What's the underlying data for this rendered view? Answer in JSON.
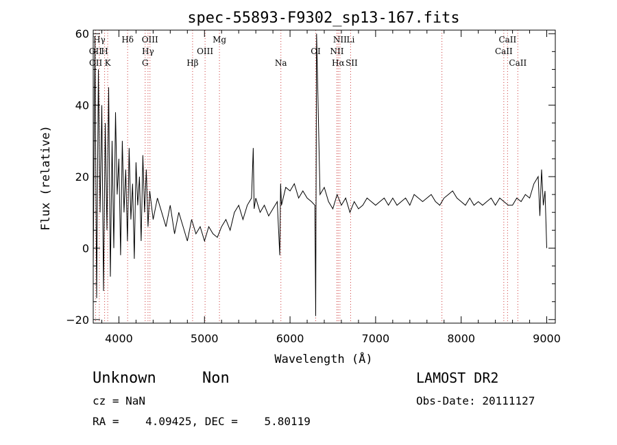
{
  "chart_data": {
    "type": "line",
    "title": "spec-55893-F9302_sp13-167.fits",
    "xlabel": "Wavelength (Å)",
    "ylabel": "Flux (relative)",
    "xlim": [
      3700,
      9100
    ],
    "ylim": [
      -21,
      61
    ],
    "xticks": [
      4000,
      5000,
      6000,
      7000,
      8000,
      9000
    ],
    "xtick_labels": [
      "4000",
      "5000",
      "6000",
      "7000",
      "8000",
      "9000"
    ],
    "yticks": [
      -20,
      0,
      20,
      40,
      60
    ],
    "ytick_labels": [
      "−20",
      "0",
      "20",
      "40",
      "60"
    ],
    "grid": false,
    "line_color": "#000000",
    "marker_color": "#cc3333",
    "series": [
      {
        "x": [
          3700,
          3720,
          3740,
          3760,
          3780,
          3800,
          3820,
          3840,
          3860,
          3880,
          3900,
          3920,
          3940,
          3960,
          3980,
          4000,
          4020,
          4040,
          4060,
          4080,
          4100,
          4120,
          4140,
          4160,
          4180,
          4200,
          4220,
          4240,
          4260,
          4280,
          4300,
          4320,
          4340,
          4360,
          4380,
          4400,
          4450,
          4500,
          4550,
          4600,
          4650,
          4700,
          4750,
          4800,
          4850,
          4900,
          4950,
          5000,
          5050,
          5100,
          5150,
          5200,
          5250,
          5300,
          5350,
          5400,
          5450,
          5500,
          5550,
          5570,
          5580,
          5600,
          5650,
          5700,
          5750,
          5800,
          5850,
          5880,
          5890,
          5900,
          5950,
          6000,
          6050,
          6100,
          6150,
          6200,
          6250,
          6290,
          6300,
          6310,
          6350,
          6400,
          6450,
          6500,
          6550,
          6600,
          6650,
          6700,
          6750,
          6800,
          6850,
          6900,
          6950,
          7000,
          7050,
          7100,
          7150,
          7200,
          7250,
          7300,
          7350,
          7400,
          7450,
          7500,
          7550,
          7600,
          7650,
          7700,
          7750,
          7800,
          7850,
          7900,
          7950,
          8000,
          8050,
          8100,
          8150,
          8200,
          8250,
          8300,
          8350,
          8400,
          8450,
          8500,
          8550,
          8600,
          8650,
          8700,
          8750,
          8800,
          8850,
          8900,
          8920,
          8940,
          8960,
          8980,
          9000
        ],
        "y": [
          -5,
          58,
          -14,
          50,
          10,
          40,
          -12,
          35,
          5,
          45,
          -8,
          30,
          0,
          38,
          15,
          25,
          -2,
          30,
          10,
          22,
          2,
          28,
          8,
          18,
          -3,
          24,
          12,
          20,
          2,
          26,
          10,
          22,
          6,
          16,
          12,
          8,
          14,
          10,
          6,
          12,
          4,
          10,
          6,
          2,
          8,
          4,
          6,
          2,
          6,
          4,
          3,
          6,
          8,
          5,
          10,
          12,
          8,
          12,
          14,
          28,
          11,
          14,
          10,
          12,
          9,
          11,
          13,
          -2,
          18,
          12,
          17,
          16,
          18,
          14,
          16,
          14,
          13,
          12,
          -19,
          60,
          15,
          17,
          13,
          11,
          15,
          12,
          14,
          10,
          13,
          11,
          12,
          14,
          13,
          12,
          13,
          14,
          12,
          14,
          12,
          13,
          14,
          12,
          15,
          14,
          13,
          14,
          15,
          13,
          12,
          14,
          15,
          16,
          14,
          13,
          12,
          14,
          12,
          13,
          12,
          13,
          14,
          12,
          14,
          13,
          12,
          12,
          14,
          13,
          15,
          14,
          18,
          20,
          9,
          22,
          12,
          16,
          0
        ]
      }
    ],
    "line_markers": [
      {
        "label": "OII",
        "x": 3727,
        "row": 2
      },
      {
        "label": "OII",
        "x": 3729,
        "row": 3
      },
      {
        "label": "Hγ",
        "x": 3771,
        "row": 1
      },
      {
        "label": "H",
        "x": 3833,
        "row": 2
      },
      {
        "label": "K",
        "x": 3869,
        "row": 3
      },
      {
        "label": "Hδ",
        "x": 4102,
        "row": 1
      },
      {
        "label": "OIII",
        "x": 4363,
        "row": 1
      },
      {
        "label": "Hγ",
        "x": 4340,
        "row": 2
      },
      {
        "label": "G",
        "x": 4307,
        "row": 3
      },
      {
        "label": "Mg",
        "x": 5175,
        "row": 1
      },
      {
        "label": "OIII",
        "x": 5007,
        "row": 2
      },
      {
        "label": "Hβ",
        "x": 4861,
        "row": 3
      },
      {
        "label": "Na",
        "x": 5893,
        "row": 3
      },
      {
        "label": "OI",
        "x": 6300,
        "row": 2
      },
      {
        "label": "NII",
        "x": 6583,
        "row": 1
      },
      {
        "label": "NII",
        "x": 6548,
        "row": 2
      },
      {
        "label": "Hα",
        "x": 6563,
        "row": 3
      },
      {
        "label": "Li",
        "x": 6708,
        "row": 1
      },
      {
        "label": "SII",
        "x": 6720,
        "row": 3
      },
      {
        "label": "CaII",
        "x": 8542,
        "row": 1
      },
      {
        "label": "CaII",
        "x": 8498,
        "row": 2
      },
      {
        "label": "CaII",
        "x": 8662,
        "row": 3
      }
    ],
    "marker_lines_x": [
      3727,
      3771,
      3833,
      3869,
      4102,
      4307,
      4340,
      4363,
      4861,
      5007,
      5175,
      5893,
      6300,
      6548,
      6563,
      6583,
      6708,
      7775,
      8498,
      8542,
      8662
    ]
  },
  "info": {
    "class": "Unknown",
    "subclass": "Non",
    "survey": "LAMOST DR2",
    "cz": "cz = NaN",
    "obs_date": "Obs-Date: 20111127",
    "radec": "RA =    4.09425, DEC =    5.80119"
  }
}
